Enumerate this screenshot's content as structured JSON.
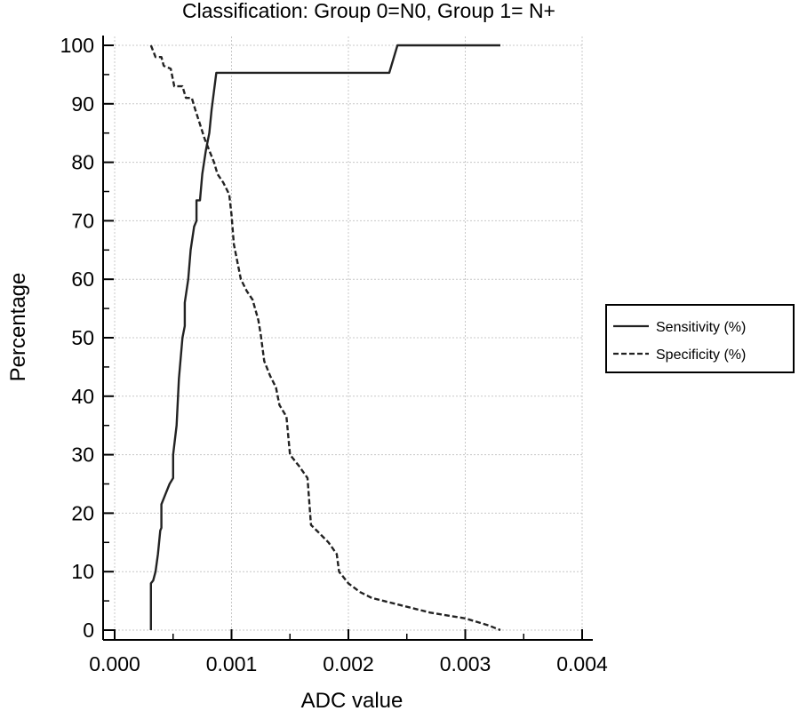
{
  "chart_data": {
    "type": "line",
    "title": "Classification: Group 0=N0, Group 1= N+",
    "xlabel": "ADC value",
    "ylabel": "Percentage",
    "xlim": [
      0,
      0.004
    ],
    "ylim": [
      0,
      100
    ],
    "x_ticks": [
      "0.000",
      "0.001",
      "0.002",
      "0.003",
      "0.004"
    ],
    "y_ticks": [
      "0",
      "10",
      "20",
      "30",
      "40",
      "50",
      "60",
      "70",
      "80",
      "90",
      "100"
    ],
    "grid": true,
    "legend_position": "right",
    "series": [
      {
        "name": "Sensitivity (%)",
        "style": "solid",
        "color": "#222222",
        "points": [
          [
            0.00031,
            0
          ],
          [
            0.00031,
            8
          ],
          [
            0.00033,
            8.5
          ],
          [
            0.00035,
            10
          ],
          [
            0.00037,
            13
          ],
          [
            0.00039,
            17
          ],
          [
            0.0004,
            17.5
          ],
          [
            0.0004,
            21.5
          ],
          [
            0.00043,
            23
          ],
          [
            0.00047,
            25
          ],
          [
            0.0005,
            26
          ],
          [
            0.0005,
            30
          ],
          [
            0.00053,
            35
          ],
          [
            0.00055,
            43
          ],
          [
            0.00058,
            50
          ],
          [
            0.0006,
            52
          ],
          [
            0.0006,
            56
          ],
          [
            0.00063,
            60
          ],
          [
            0.00065,
            65
          ],
          [
            0.00068,
            69
          ],
          [
            0.0007,
            70
          ],
          [
            0.0007,
            73.5
          ],
          [
            0.00073,
            73.5
          ],
          [
            0.00075,
            78
          ],
          [
            0.00078,
            82
          ],
          [
            0.00081,
            85
          ],
          [
            0.00083,
            89
          ],
          [
            0.00087,
            95.3
          ],
          [
            0.00235,
            95.3
          ],
          [
            0.00242,
            100
          ],
          [
            0.0033,
            100
          ]
        ]
      },
      {
        "name": "Specificity (%)",
        "style": "dashed",
        "color": "#222222",
        "points": [
          [
            0.00031,
            100
          ],
          [
            0.00035,
            98
          ],
          [
            0.0004,
            98
          ],
          [
            0.00042,
            96.5
          ],
          [
            0.00048,
            96
          ],
          [
            0.00051,
            93
          ],
          [
            0.00058,
            93
          ],
          [
            0.00061,
            91
          ],
          [
            0.00066,
            91
          ],
          [
            0.00069,
            89
          ],
          [
            0.00073,
            86.5
          ],
          [
            0.00077,
            84
          ],
          [
            0.0008,
            82.5
          ],
          [
            0.00085,
            80
          ],
          [
            0.00088,
            78
          ],
          [
            0.00093,
            76.5
          ],
          [
            0.00098,
            74.5
          ],
          [
            0.001,
            71
          ],
          [
            0.00102,
            66
          ],
          [
            0.00108,
            60
          ],
          [
            0.00113,
            58
          ],
          [
            0.00118,
            56.5
          ],
          [
            0.00123,
            53
          ],
          [
            0.00125,
            50.5
          ],
          [
            0.00128,
            46
          ],
          [
            0.00133,
            43.5
          ],
          [
            0.00138,
            41.5
          ],
          [
            0.00141,
            38.5
          ],
          [
            0.00147,
            36.5
          ],
          [
            0.0015,
            30
          ],
          [
            0.00158,
            28
          ],
          [
            0.00165,
            26
          ],
          [
            0.00168,
            18
          ],
          [
            0.00173,
            17
          ],
          [
            0.00183,
            15
          ],
          [
            0.0019,
            13
          ],
          [
            0.00192,
            10
          ],
          [
            0.002,
            8
          ],
          [
            0.0021,
            6.5
          ],
          [
            0.0022,
            5.5
          ],
          [
            0.0023,
            5
          ],
          [
            0.0025,
            4
          ],
          [
            0.0027,
            3
          ],
          [
            0.003,
            2
          ],
          [
            0.0032,
            0.8
          ],
          [
            0.0033,
            0
          ]
        ]
      }
    ]
  }
}
